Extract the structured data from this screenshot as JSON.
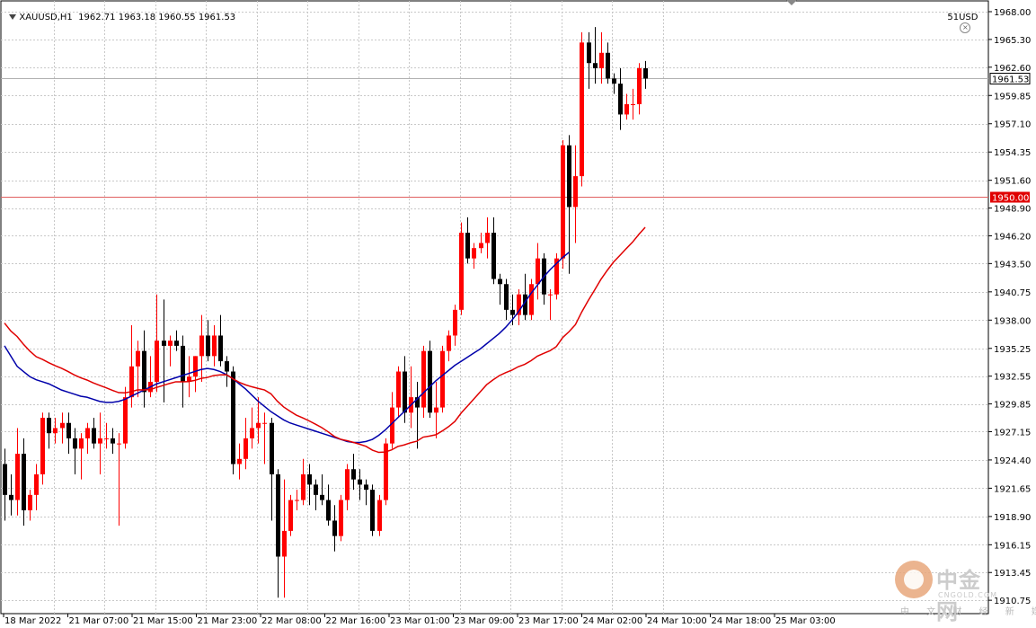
{
  "header": {
    "symbol": "XAUUSD,H1",
    "open": "1962.71",
    "high": "1963.18",
    "low": "1960.55",
    "close": "1961.53",
    "indicator_label": "51USD"
  },
  "watermark": {
    "brand": "中金网",
    "site": "CNGOLD.COM",
    "tagline": "中 文 财 经 新 媒 体"
  },
  "colors": {
    "bull": "#ff0000",
    "bear": "#000000",
    "ma_fast": "#0000aa",
    "ma_slow": "#e00000",
    "grid": "#c8c8c8",
    "level_line": "#e06060",
    "price_tag_bg": "#e00000"
  },
  "chart_data": {
    "type": "candlestick",
    "symbol": "XAUUSD",
    "timeframe": "H1",
    "ylim": [
      1910.5,
      1968.0
    ],
    "y_ticks": [
      "1968.00",
      "1965.30",
      "1962.60",
      "1959.85",
      "1957.10",
      "1954.35",
      "1951.60",
      "1948.90",
      "1946.20",
      "1943.50",
      "1940.75",
      "1938.00",
      "1935.25",
      "1932.55",
      "1929.85",
      "1927.15",
      "1924.40",
      "1921.65",
      "1918.90",
      "1916.15",
      "1913.45",
      "1910.75"
    ],
    "x_tick_labels": [
      "18 Mar 2022",
      "21 Mar 07:00",
      "21 Mar 15:00",
      "21 Mar 23:00",
      "22 Mar 08:00",
      "22 Mar 16:00",
      "23 Mar 01:00",
      "23 Mar 09:00",
      "23 Mar 17:00",
      "24 Mar 02:00",
      "24 Mar 10:00",
      "24 Mar 18:00",
      "25 Mar 03:00"
    ],
    "x_tick_index": [
      0,
      8,
      16,
      24,
      32,
      40,
      48,
      56,
      64,
      72,
      80,
      88,
      96
    ],
    "current_price": "1961.53",
    "horizontal_level": "1950.00",
    "candles": [
      {
        "o": 1924.0,
        "h": 1925.5,
        "l": 1918.5,
        "c": 1921.0
      },
      {
        "o": 1921.0,
        "h": 1923.0,
        "l": 1919.0,
        "c": 1920.5
      },
      {
        "o": 1920.5,
        "h": 1927.5,
        "l": 1919.0,
        "c": 1925.0
      },
      {
        "o": 1925.0,
        "h": 1926.5,
        "l": 1918.0,
        "c": 1919.5
      },
      {
        "o": 1919.5,
        "h": 1921.5,
        "l": 1918.5,
        "c": 1921.0
      },
      {
        "o": 1921.0,
        "h": 1924.0,
        "l": 1919.5,
        "c": 1923.0
      },
      {
        "o": 1923.0,
        "h": 1929.0,
        "l": 1922.0,
        "c": 1928.5
      },
      {
        "o": 1928.5,
        "h": 1929.0,
        "l": 1925.5,
        "c": 1927.0
      },
      {
        "o": 1927.0,
        "h": 1928.5,
        "l": 1926.0,
        "c": 1927.5
      },
      {
        "o": 1927.5,
        "h": 1929.0,
        "l": 1926.0,
        "c": 1928.0
      },
      {
        "o": 1928.0,
        "h": 1929.0,
        "l": 1925.0,
        "c": 1926.5
      },
      {
        "o": 1926.5,
        "h": 1927.5,
        "l": 1923.0,
        "c": 1925.5
      },
      {
        "o": 1925.5,
        "h": 1927.0,
        "l": 1922.5,
        "c": 1926.5
      },
      {
        "o": 1926.5,
        "h": 1928.0,
        "l": 1925.0,
        "c": 1927.5
      },
      {
        "o": 1927.5,
        "h": 1928.5,
        "l": 1925.5,
        "c": 1926.0
      },
      {
        "o": 1926.0,
        "h": 1929.0,
        "l": 1923.0,
        "c": 1926.5
      },
      {
        "o": 1926.5,
        "h": 1928.0,
        "l": 1925.5,
        "c": 1926.5
      },
      {
        "o": 1926.5,
        "h": 1927.5,
        "l": 1925.0,
        "c": 1926.0
      },
      {
        "o": 1926.0,
        "h": 1927.0,
        "l": 1918.0,
        "c": 1926.0
      },
      {
        "o": 1926.0,
        "h": 1931.5,
        "l": 1925.5,
        "c": 1930.5
      },
      {
        "o": 1930.5,
        "h": 1937.5,
        "l": 1929.5,
        "c": 1933.5
      },
      {
        "o": 1933.5,
        "h": 1936.0,
        "l": 1930.5,
        "c": 1935.0
      },
      {
        "o": 1935.0,
        "h": 1937.0,
        "l": 1929.5,
        "c": 1931.0
      },
      {
        "o": 1931.0,
        "h": 1934.5,
        "l": 1930.5,
        "c": 1932.0
      },
      {
        "o": 1932.0,
        "h": 1940.5,
        "l": 1931.0,
        "c": 1936.0
      },
      {
        "o": 1936.0,
        "h": 1940.0,
        "l": 1930.0,
        "c": 1935.5
      },
      {
        "o": 1935.5,
        "h": 1936.5,
        "l": 1933.5,
        "c": 1936.0
      },
      {
        "o": 1936.0,
        "h": 1937.0,
        "l": 1935.0,
        "c": 1935.5
      },
      {
        "o": 1935.5,
        "h": 1936.5,
        "l": 1929.5,
        "c": 1932.0
      },
      {
        "o": 1932.0,
        "h": 1934.5,
        "l": 1930.5,
        "c": 1932.5
      },
      {
        "o": 1932.5,
        "h": 1934.5,
        "l": 1931.0,
        "c": 1934.5
      },
      {
        "o": 1934.5,
        "h": 1938.5,
        "l": 1932.0,
        "c": 1936.5
      },
      {
        "o": 1936.5,
        "h": 1938.0,
        "l": 1934.0,
        "c": 1934.5
      },
      {
        "o": 1934.5,
        "h": 1937.5,
        "l": 1933.5,
        "c": 1936.5
      },
      {
        "o": 1936.5,
        "h": 1938.5,
        "l": 1933.5,
        "c": 1934.0
      },
      {
        "o": 1934.0,
        "h": 1934.5,
        "l": 1931.5,
        "c": 1933.0
      },
      {
        "o": 1933.0,
        "h": 1933.5,
        "l": 1923.0,
        "c": 1924.0
      },
      {
        "o": 1924.0,
        "h": 1926.0,
        "l": 1922.5,
        "c": 1924.5
      },
      {
        "o": 1924.5,
        "h": 1928.5,
        "l": 1923.5,
        "c": 1926.5
      },
      {
        "o": 1926.5,
        "h": 1929.5,
        "l": 1925.5,
        "c": 1927.5
      },
      {
        "o": 1927.5,
        "h": 1930.5,
        "l": 1926.0,
        "c": 1928.0
      },
      {
        "o": 1928.0,
        "h": 1929.0,
        "l": 1924.0,
        "c": 1928.0
      },
      {
        "o": 1928.0,
        "h": 1928.5,
        "l": 1918.5,
        "c": 1923.0
      },
      {
        "o": 1923.0,
        "h": 1923.5,
        "l": 1911.0,
        "c": 1915.0
      },
      {
        "o": 1915.0,
        "h": 1922.5,
        "l": 1911.0,
        "c": 1917.5
      },
      {
        "o": 1917.5,
        "h": 1921.0,
        "l": 1917.0,
        "c": 1920.5
      },
      {
        "o": 1920.5,
        "h": 1921.5,
        "l": 1919.5,
        "c": 1920.5
      },
      {
        "o": 1920.5,
        "h": 1924.5,
        "l": 1920.0,
        "c": 1923.0
      },
      {
        "o": 1923.0,
        "h": 1924.0,
        "l": 1920.0,
        "c": 1922.0
      },
      {
        "o": 1922.0,
        "h": 1922.5,
        "l": 1919.5,
        "c": 1921.0
      },
      {
        "o": 1921.0,
        "h": 1923.0,
        "l": 1920.0,
        "c": 1920.5
      },
      {
        "o": 1920.5,
        "h": 1922.0,
        "l": 1918.0,
        "c": 1918.5
      },
      {
        "o": 1918.5,
        "h": 1920.0,
        "l": 1915.5,
        "c": 1917.0
      },
      {
        "o": 1917.0,
        "h": 1921.0,
        "l": 1916.5,
        "c": 1920.5
      },
      {
        "o": 1920.5,
        "h": 1924.0,
        "l": 1919.5,
        "c": 1923.5
      },
      {
        "o": 1923.5,
        "h": 1925.0,
        "l": 1921.5,
        "c": 1922.5
      },
      {
        "o": 1922.5,
        "h": 1923.5,
        "l": 1920.5,
        "c": 1922.0
      },
      {
        "o": 1922.0,
        "h": 1922.5,
        "l": 1920.0,
        "c": 1921.5
      },
      {
        "o": 1921.5,
        "h": 1922.0,
        "l": 1917.0,
        "c": 1917.5
      },
      {
        "o": 1917.5,
        "h": 1921.0,
        "l": 1917.0,
        "c": 1920.5
      },
      {
        "o": 1920.5,
        "h": 1926.5,
        "l": 1920.0,
        "c": 1926.0
      },
      {
        "o": 1926.0,
        "h": 1931.0,
        "l": 1925.5,
        "c": 1929.5
      },
      {
        "o": 1929.5,
        "h": 1933.5,
        "l": 1928.5,
        "c": 1933.0
      },
      {
        "o": 1933.0,
        "h": 1934.5,
        "l": 1928.0,
        "c": 1929.0
      },
      {
        "o": 1929.0,
        "h": 1933.5,
        "l": 1927.5,
        "c": 1930.5
      },
      {
        "o": 1930.5,
        "h": 1932.0,
        "l": 1925.5,
        "c": 1929.5
      },
      {
        "o": 1929.5,
        "h": 1935.5,
        "l": 1928.5,
        "c": 1935.0
      },
      {
        "o": 1935.0,
        "h": 1936.0,
        "l": 1928.5,
        "c": 1929.0
      },
      {
        "o": 1929.0,
        "h": 1932.0,
        "l": 1926.5,
        "c": 1929.5
      },
      {
        "o": 1929.5,
        "h": 1935.5,
        "l": 1929.0,
        "c": 1935.0
      },
      {
        "o": 1935.0,
        "h": 1937.0,
        "l": 1934.0,
        "c": 1936.5
      },
      {
        "o": 1936.5,
        "h": 1939.5,
        "l": 1935.5,
        "c": 1939.0
      },
      {
        "o": 1939.0,
        "h": 1947.5,
        "l": 1938.5,
        "c": 1946.5
      },
      {
        "o": 1946.5,
        "h": 1948.0,
        "l": 1943.5,
        "c": 1944.0
      },
      {
        "o": 1944.0,
        "h": 1945.5,
        "l": 1943.0,
        "c": 1945.0
      },
      {
        "o": 1945.0,
        "h": 1946.5,
        "l": 1944.5,
        "c": 1945.5
      },
      {
        "o": 1945.5,
        "h": 1948.0,
        "l": 1944.0,
        "c": 1946.5
      },
      {
        "o": 1946.5,
        "h": 1948.0,
        "l": 1941.5,
        "c": 1942.0
      },
      {
        "o": 1942.0,
        "h": 1942.5,
        "l": 1939.5,
        "c": 1941.5
      },
      {
        "o": 1941.5,
        "h": 1942.0,
        "l": 1938.0,
        "c": 1939.0
      },
      {
        "o": 1939.0,
        "h": 1940.5,
        "l": 1937.5,
        "c": 1938.5
      },
      {
        "o": 1938.5,
        "h": 1941.0,
        "l": 1937.5,
        "c": 1940.5
      },
      {
        "o": 1940.5,
        "h": 1942.5,
        "l": 1938.0,
        "c": 1938.5
      },
      {
        "o": 1938.5,
        "h": 1942.0,
        "l": 1938.0,
        "c": 1941.5
      },
      {
        "o": 1941.5,
        "h": 1945.5,
        "l": 1940.0,
        "c": 1944.0
      },
      {
        "o": 1944.0,
        "h": 1944.5,
        "l": 1939.5,
        "c": 1940.5
      },
      {
        "o": 1940.5,
        "h": 1941.0,
        "l": 1938.0,
        "c": 1940.5
      },
      {
        "o": 1940.5,
        "h": 1944.5,
        "l": 1940.0,
        "c": 1944.0
      },
      {
        "o": 1944.0,
        "h": 1955.5,
        "l": 1943.0,
        "c": 1955.0
      },
      {
        "o": 1955.0,
        "h": 1956.0,
        "l": 1942.5,
        "c": 1949.0
      },
      {
        "o": 1949.0,
        "h": 1955.0,
        "l": 1945.5,
        "c": 1952.0
      },
      {
        "o": 1952.0,
        "h": 1966.0,
        "l": 1951.0,
        "c": 1965.0
      },
      {
        "o": 1965.0,
        "h": 1966.0,
        "l": 1960.5,
        "c": 1963.0
      },
      {
        "o": 1963.0,
        "h": 1966.5,
        "l": 1961.0,
        "c": 1962.5
      },
      {
        "o": 1962.5,
        "h": 1966.0,
        "l": 1961.0,
        "c": 1964.0
      },
      {
        "o": 1964.0,
        "h": 1965.0,
        "l": 1961.0,
        "c": 1961.5
      },
      {
        "o": 1961.5,
        "h": 1962.0,
        "l": 1960.0,
        "c": 1961.0
      },
      {
        "o": 1961.0,
        "h": 1962.5,
        "l": 1956.5,
        "c": 1958.0
      },
      {
        "o": 1958.0,
        "h": 1960.0,
        "l": 1957.5,
        "c": 1959.0
      },
      {
        "o": 1959.0,
        "h": 1960.5,
        "l": 1957.5,
        "c": 1959.0
      },
      {
        "o": 1959.0,
        "h": 1963.0,
        "l": 1958.0,
        "c": 1962.5
      },
      {
        "o": 1962.5,
        "h": 1963.2,
        "l": 1960.5,
        "c": 1961.5
      }
    ],
    "ma_fast": [
      1935.5,
      1934.5,
      1933.5,
      1933.0,
      1932.5,
      1932.2,
      1932.0,
      1931.8,
      1931.5,
      1931.2,
      1931.0,
      1930.8,
      1930.6,
      1930.5,
      1930.3,
      1930.1,
      1930.0,
      1930.0,
      1930.1,
      1930.3,
      1930.6,
      1930.9,
      1931.2,
      1931.5,
      1931.8,
      1932.0,
      1932.2,
      1932.4,
      1932.6,
      1932.8,
      1933.0,
      1933.2,
      1933.3,
      1933.2,
      1933.0,
      1932.7,
      1932.3,
      1931.8,
      1931.3,
      1930.7,
      1930.1,
      1929.6,
      1929.1,
      1928.7,
      1928.3,
      1928.0,
      1927.8,
      1927.6,
      1927.4,
      1927.2,
      1927.0,
      1926.8,
      1926.6,
      1926.4,
      1926.2,
      1926.1,
      1926.1,
      1926.2,
      1926.4,
      1926.8,
      1927.3,
      1927.9,
      1928.5,
      1929.1,
      1929.7,
      1930.3,
      1930.9,
      1931.5,
      1932.1,
      1932.6,
      1933.1,
      1933.6,
      1934.0,
      1934.4,
      1934.8,
      1935.2,
      1935.7,
      1936.2,
      1936.7,
      1937.3,
      1938.0,
      1938.8,
      1939.7,
      1940.6,
      1941.4,
      1942.2,
      1942.9,
      1943.5,
      1944.1,
      1944.6
    ]
  }
}
